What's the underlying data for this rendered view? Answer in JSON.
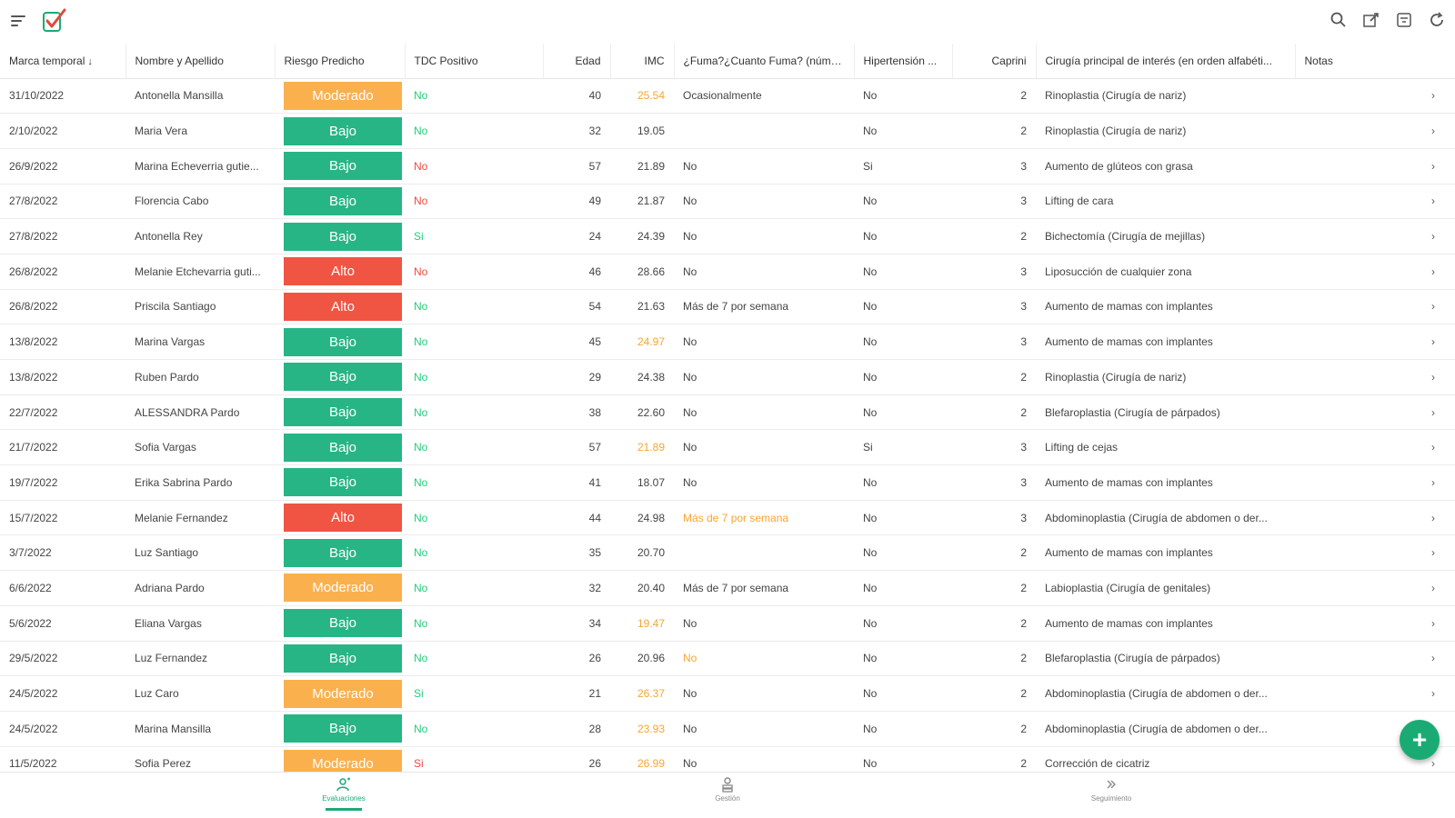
{
  "colors": {
    "accent": "#1aab74",
    "bajo": "#27b585",
    "alto": "#f05543",
    "moderado": "#fbb04e",
    "warning_text": "#f7a533"
  },
  "topbar": {
    "icons": [
      "menu-icon",
      "checkmark-logo-icon",
      "search-icon",
      "edit-icon",
      "filter-icon",
      "refresh-icon"
    ]
  },
  "table": {
    "headers": {
      "fecha": "Marca temporal",
      "nombre": "Nombre y Apellido",
      "riesgo": "Riesgo Predicho",
      "tdc": "TDC Positivo",
      "edad": "Edad",
      "imc": "IMC",
      "fuma": "¿Fuma?¿Cuanto Fuma? (núme...",
      "hiper": "Hipertensión ...",
      "caprini": "Caprini",
      "cirugia": "Cirugía principal de interés (en orden alfabéti...",
      "notas": "Notas"
    },
    "rows": [
      {
        "fecha": "31/10/2022",
        "nombre": "Antonella Mansilla",
        "riesgo": "Moderado",
        "tdc": "No",
        "edad": "40",
        "imc": "25.54",
        "imc_warn": true,
        "fuma": "Ocasionalmente",
        "fuma_warn": false,
        "hiper": "No",
        "caprini": "2",
        "cirugia": "Rinoplastia (Cirugía de nariz)"
      },
      {
        "fecha": "2/10/2022",
        "nombre": "Maria Vera",
        "riesgo": "Bajo",
        "tdc": "No",
        "edad": "32",
        "imc": "19.05",
        "imc_warn": false,
        "fuma": "",
        "fuma_warn": false,
        "hiper": "No",
        "caprini": "2",
        "cirugia": "Rinoplastia (Cirugía de nariz)"
      },
      {
        "fecha": "26/9/2022",
        "nombre": "Marina Echeverria gutie...",
        "riesgo": "Bajo",
        "tdc": "No",
        "tdc_red": true,
        "edad": "57",
        "imc": "21.89",
        "imc_warn": false,
        "fuma": "No",
        "fuma_warn": false,
        "hiper": "Si",
        "caprini": "3",
        "cirugia": "Aumento de glúteos con grasa"
      },
      {
        "fecha": "27/8/2022",
        "nombre": "Florencia Cabo",
        "riesgo": "Bajo",
        "tdc": "No",
        "tdc_red": true,
        "edad": "49",
        "imc": "21.87",
        "imc_warn": false,
        "fuma": "No",
        "fuma_warn": false,
        "hiper": "No",
        "caprini": "3",
        "cirugia": "Lifting de cara"
      },
      {
        "fecha": "27/8/2022",
        "nombre": "Antonella Rey",
        "riesgo": "Bajo",
        "tdc": "Si",
        "edad": "24",
        "imc": "24.39",
        "imc_warn": false,
        "fuma": "No",
        "fuma_warn": false,
        "hiper": "No",
        "caprini": "2",
        "cirugia": "Bichectomía (Cirugía de mejillas)"
      },
      {
        "fecha": "26/8/2022",
        "nombre": "Melanie Etchevarria guti...",
        "riesgo": "Alto",
        "tdc": "No",
        "tdc_red": true,
        "edad": "46",
        "imc": "28.66",
        "imc_warn": false,
        "fuma": "No",
        "fuma_warn": false,
        "hiper": "No",
        "caprini": "3",
        "cirugia": "Liposucción de cualquier zona"
      },
      {
        "fecha": "26/8/2022",
        "nombre": "Priscila Santiago",
        "riesgo": "Alto",
        "tdc": "No",
        "edad": "54",
        "imc": "21.63",
        "imc_warn": false,
        "fuma": "Más de 7 por semana",
        "fuma_warn": false,
        "hiper": "No",
        "caprini": "3",
        "cirugia": "Aumento de mamas con implantes"
      },
      {
        "fecha": "13/8/2022",
        "nombre": "Marina Vargas",
        "riesgo": "Bajo",
        "tdc": "No",
        "edad": "45",
        "imc": "24.97",
        "imc_warn": true,
        "fuma": "No",
        "fuma_warn": false,
        "hiper": "No",
        "caprini": "3",
        "cirugia": "Aumento de mamas con implantes"
      },
      {
        "fecha": "13/8/2022",
        "nombre": "Ruben Pardo",
        "riesgo": "Bajo",
        "tdc": "No",
        "edad": "29",
        "imc": "24.38",
        "imc_warn": false,
        "fuma": "No",
        "fuma_warn": false,
        "hiper": "No",
        "caprini": "2",
        "cirugia": "Rinoplastia (Cirugía de nariz)"
      },
      {
        "fecha": "22/7/2022",
        "nombre": "ALESSANDRA Pardo",
        "riesgo": "Bajo",
        "tdc": "No",
        "edad": "38",
        "imc": "22.60",
        "imc_warn": false,
        "fuma": "No",
        "fuma_warn": false,
        "hiper": "No",
        "caprini": "2",
        "cirugia": "Blefaroplastia (Cirugía de párpados)"
      },
      {
        "fecha": "21/7/2022",
        "nombre": "Sofia Vargas",
        "riesgo": "Bajo",
        "tdc": "No",
        "edad": "57",
        "imc": "21.89",
        "imc_warn": true,
        "fuma": "No",
        "fuma_warn": false,
        "hiper": "Si",
        "caprini": "3",
        "cirugia": "Lifting de cejas"
      },
      {
        "fecha": "19/7/2022",
        "nombre": "Erika Sabrina Pardo",
        "riesgo": "Bajo",
        "tdc": "No",
        "edad": "41",
        "imc": "18.07",
        "imc_warn": false,
        "fuma": "No",
        "fuma_warn": false,
        "hiper": "No",
        "caprini": "3",
        "cirugia": "Aumento de mamas con implantes"
      },
      {
        "fecha": "15/7/2022",
        "nombre": "Melanie Fernandez",
        "riesgo": "Alto",
        "tdc": "No",
        "edad": "44",
        "imc": "24.98",
        "imc_warn": false,
        "fuma": "Más de 7 por semana",
        "fuma_warn": true,
        "hiper": "No",
        "caprini": "3",
        "cirugia": "Abdominoplastia (Cirugía de abdomen o der..."
      },
      {
        "fecha": "3/7/2022",
        "nombre": "Luz Santiago",
        "riesgo": "Bajo",
        "tdc": "No",
        "edad": "35",
        "imc": "20.70",
        "imc_warn": false,
        "fuma": "",
        "fuma_warn": false,
        "hiper": "No",
        "caprini": "2",
        "cirugia": "Aumento de mamas con implantes"
      },
      {
        "fecha": "6/6/2022",
        "nombre": "Adriana Pardo",
        "riesgo": "Moderado",
        "tdc": "No",
        "edad": "32",
        "imc": "20.40",
        "imc_warn": false,
        "fuma": "Más de 7 por semana",
        "fuma_warn": false,
        "hiper": "No",
        "caprini": "2",
        "cirugia": "Labioplastia (Cirugía de genitales)"
      },
      {
        "fecha": "5/6/2022",
        "nombre": "Eliana Vargas",
        "riesgo": "Bajo",
        "tdc": "No",
        "edad": "34",
        "imc": "19.47",
        "imc_warn": true,
        "fuma": "No",
        "fuma_warn": false,
        "hiper": "No",
        "caprini": "2",
        "cirugia": "Aumento de mamas con implantes"
      },
      {
        "fecha": "29/5/2022",
        "nombre": "Luz Fernandez",
        "riesgo": "Bajo",
        "tdc": "No",
        "edad": "26",
        "imc": "20.96",
        "imc_warn": false,
        "fuma": "No",
        "fuma_warn": true,
        "hiper": "No",
        "caprini": "2",
        "cirugia": "Blefaroplastia (Cirugía de párpados)"
      },
      {
        "fecha": "24/5/2022",
        "nombre": "Luz Caro",
        "riesgo": "Moderado",
        "tdc": "Si",
        "edad": "21",
        "imc": "26.37",
        "imc_warn": true,
        "fuma": "No",
        "fuma_warn": false,
        "hiper": "No",
        "caprini": "2",
        "cirugia": "Abdominoplastia (Cirugía de abdomen o der..."
      },
      {
        "fecha": "24/5/2022",
        "nombre": "Marina Mansilla",
        "riesgo": "Bajo",
        "tdc": "No",
        "edad": "28",
        "imc": "23.93",
        "imc_warn": true,
        "fuma": "No",
        "fuma_warn": false,
        "hiper": "No",
        "caprini": "2",
        "cirugia": "Abdominoplastia (Cirugía de abdomen o der..."
      },
      {
        "fecha": "11/5/2022",
        "nombre": "Sofia Perez",
        "riesgo": "Moderado",
        "tdc": "Si",
        "tdc_red": true,
        "edad": "26",
        "imc": "26.99",
        "imc_warn": true,
        "fuma": "No",
        "fuma_warn": false,
        "hiper": "No",
        "caprini": "2",
        "cirugia": "Corrección de cicatriz"
      }
    ]
  },
  "fab": {
    "label": "+"
  },
  "bottom_nav": [
    {
      "label": "Evaluaciones",
      "icon": "person-add-icon",
      "active": true
    },
    {
      "label": "Gestión",
      "icon": "stack-icon",
      "active": false
    },
    {
      "label": "Seguimiento",
      "icon": "chevrons-right-icon",
      "active": false
    }
  ]
}
